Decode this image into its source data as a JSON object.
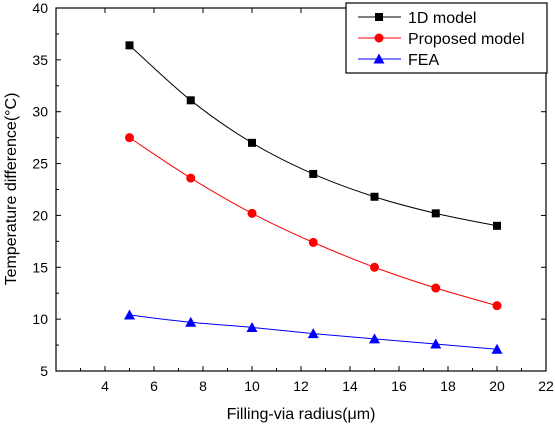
{
  "chart_data": {
    "type": "line",
    "title": "",
    "xlabel": "Filling-via radius(μm)",
    "ylabel": "Temperature difference(°C)",
    "xlim": [
      2,
      22
    ],
    "ylim": [
      5,
      40
    ],
    "xticks": [
      4,
      6,
      8,
      10,
      12,
      14,
      16,
      18,
      20,
      22
    ],
    "yticks": [
      5,
      10,
      15,
      20,
      25,
      30,
      35,
      40
    ],
    "grid": false,
    "legend_position": "top-right",
    "x": [
      5,
      7.5,
      10,
      12.5,
      15,
      17.5,
      20
    ],
    "series": [
      {
        "name": "1D model",
        "color": "#000000",
        "marker": "square",
        "values": [
          36.4,
          31.1,
          27.0,
          24.0,
          21.8,
          20.2,
          19.0
        ]
      },
      {
        "name": "Proposed model",
        "color": "#ff0000",
        "marker": "circle",
        "values": [
          27.5,
          23.6,
          20.2,
          17.4,
          15.0,
          13.0,
          11.3
        ]
      },
      {
        "name": "FEA",
        "color": "#0000ff",
        "marker": "triangle",
        "values": [
          10.4,
          9.7,
          9.2,
          8.6,
          8.1,
          7.6,
          7.1
        ]
      }
    ]
  }
}
